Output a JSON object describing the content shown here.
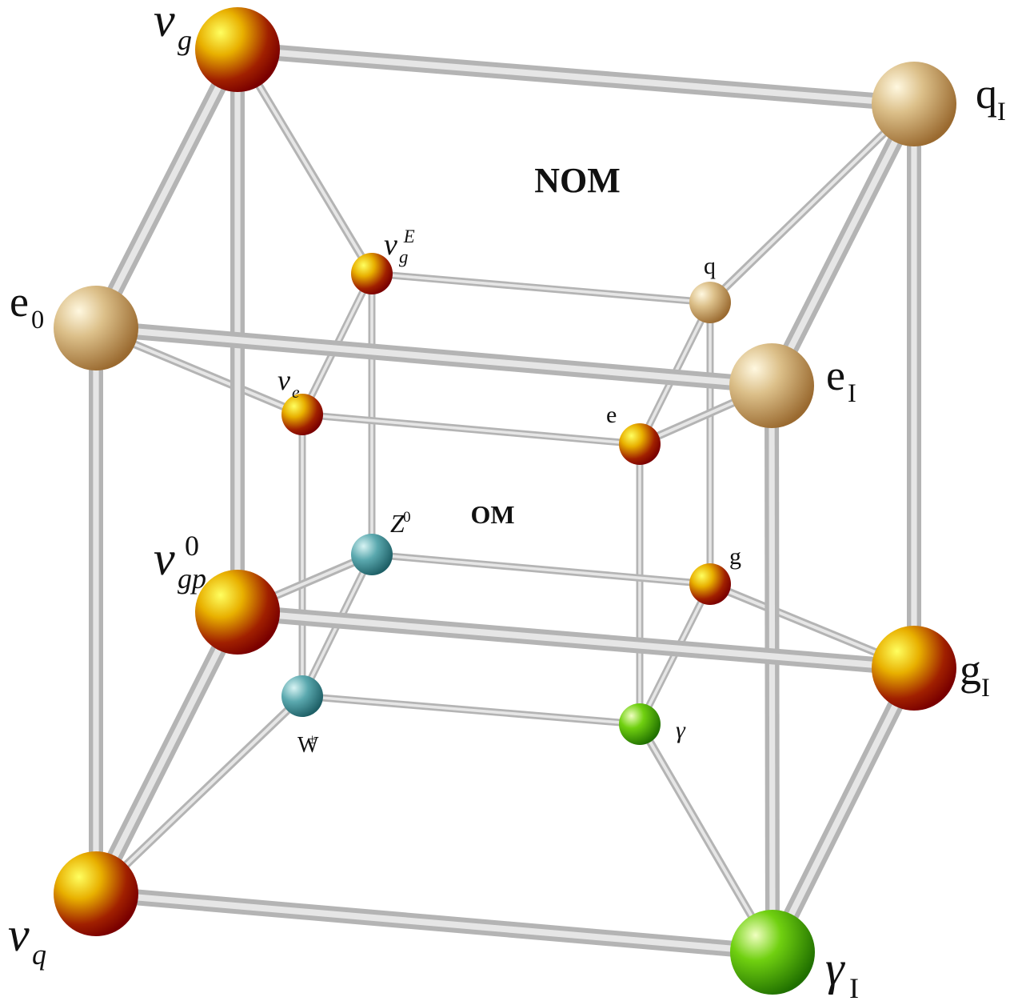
{
  "titles": {
    "outer": "NOM",
    "inner": "OM"
  },
  "nodes": [
    {
      "label": "ν",
      "sub": "g"
    },
    {
      "label": "q",
      "sub": "I"
    },
    {
      "label": "e",
      "sub": "0"
    },
    {
      "label": "e",
      "sub": "I"
    },
    {
      "label": "ν",
      "sub": "gp",
      "sup": "0"
    },
    {
      "label": "g",
      "sub": "I"
    },
    {
      "label": "ν",
      "sub": "q"
    },
    {
      "label": "γ",
      "sub": "I"
    },
    {
      "label": "ν",
      "sub": "g",
      "sup": "E"
    },
    {
      "label": "q"
    },
    {
      "label": "ν",
      "sub": "e"
    },
    {
      "label": "e"
    },
    {
      "label": "Z",
      "sup": "0"
    },
    {
      "label": "g"
    },
    {
      "label": "W",
      "sup": "±"
    },
    {
      "label": "γ"
    }
  ]
}
